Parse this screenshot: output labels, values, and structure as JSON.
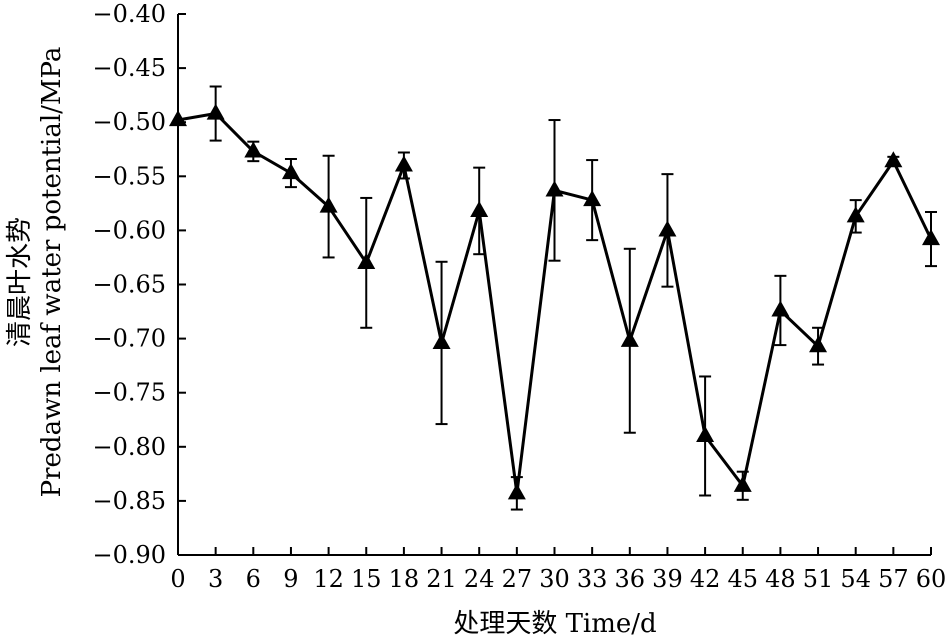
{
  "chart_data": {
    "type": "line",
    "xlabel": "处理天数 Time/d",
    "ylabel_cn": "清晨叶水势",
    "ylabel_en": "Predawn leaf water potential/MPa",
    "xlim": [
      0,
      60
    ],
    "ylim": [
      -0.9,
      -0.4
    ],
    "x_ticks": [
      "0",
      "3",
      "6",
      "9",
      "12",
      "15",
      "18",
      "21",
      "24",
      "27",
      "30",
      "33",
      "36",
      "39",
      "42",
      "45",
      "48",
      "51",
      "54",
      "57",
      "60"
    ],
    "y_ticks": [
      "-0.40",
      "-0.45",
      "-0.50",
      "-0.55",
      "-0.60",
      "-0.65",
      "-0.70",
      "-0.75",
      "-0.80",
      "-0.85",
      "-0.90"
    ],
    "grid": false,
    "marker": "triangle",
    "series": [
      {
        "x": [
          0,
          3,
          6,
          9,
          12,
          15,
          18,
          21,
          24,
          27,
          30,
          33,
          36,
          39,
          42,
          45,
          48,
          51,
          54,
          57,
          60
        ],
        "y": [
          -0.498,
          -0.492,
          -0.527,
          -0.547,
          -0.578,
          -0.63,
          -0.54,
          -0.704,
          -0.582,
          -0.843,
          -0.563,
          -0.572,
          -0.702,
          -0.6,
          -0.79,
          -0.836,
          -0.674,
          -0.707,
          -0.587,
          -0.536,
          -0.608
        ],
        "err": [
          0,
          0.025,
          0.009,
          0.013,
          0.047,
          0.06,
          0.012,
          0.075,
          0.04,
          0.015,
          0.065,
          0.037,
          0.085,
          0.052,
          0.055,
          0.013,
          0.032,
          0.017,
          0.015,
          0.004,
          0.025
        ]
      }
    ]
  }
}
